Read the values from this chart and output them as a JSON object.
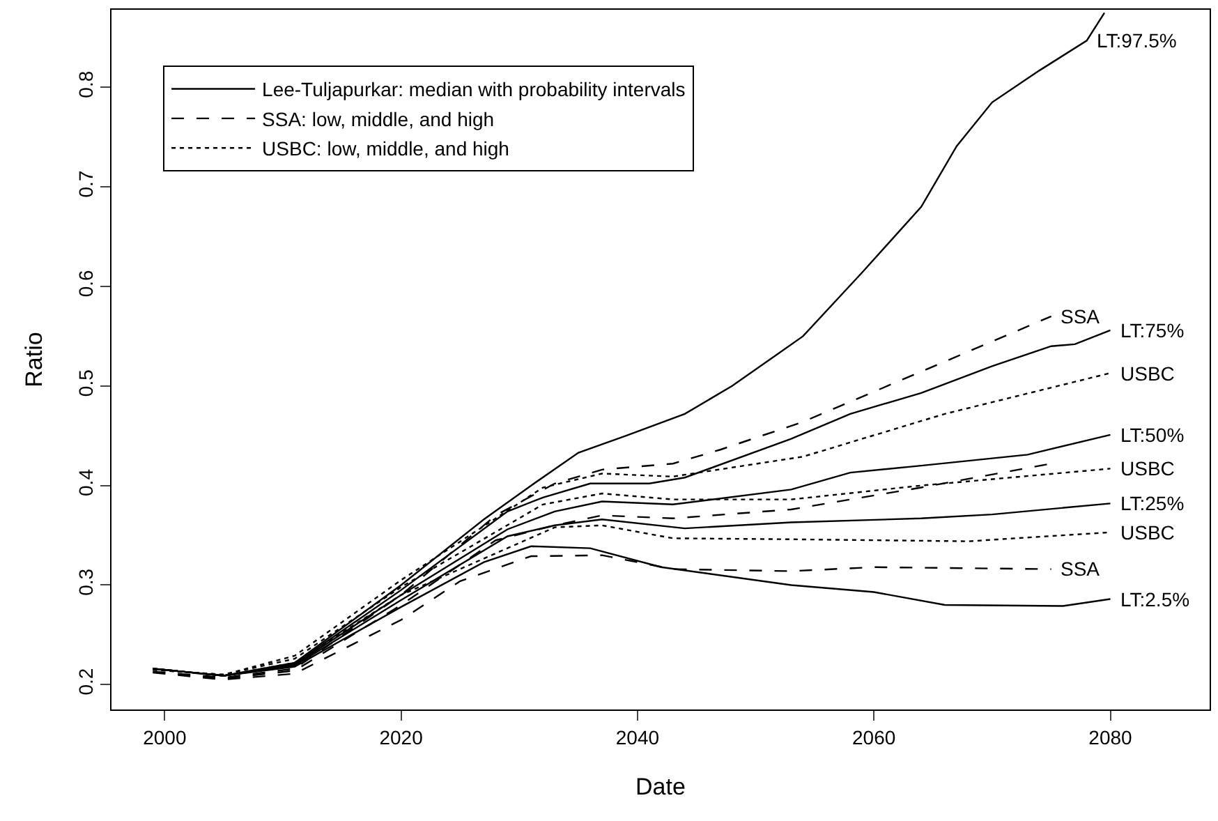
{
  "chart_data": {
    "type": "line",
    "xlabel": "Date",
    "ylabel": "Ratio",
    "xlim": [
      1995.5,
      2088.4
    ],
    "ylim": [
      0.175,
      0.878
    ],
    "xticks": [
      2000,
      2020,
      2040,
      2060,
      2080
    ],
    "yticks": [
      0.2,
      0.3,
      0.4,
      0.5,
      0.6,
      0.7,
      0.8
    ],
    "grid": false,
    "legend": "top left",
    "marker": "none",
    "series": [
      {
        "name": "Lee-Tuljapurkar: median with probability intervals",
        "color": "#000000",
        "line_style": "solid",
        "x": [
          1999,
          2005,
          2011,
          2020,
          2029,
          2033,
          2037,
          2043,
          2053,
          2058,
          2064,
          2073,
          2080
        ],
        "values": [
          0.216,
          0.209,
          0.22,
          0.29,
          0.356,
          0.374,
          0.384,
          0.381,
          0.396,
          0.413,
          0.42,
          0.431,
          0.451
        ]
      },
      {
        "name": "SSA: low, middle, and high",
        "color": "#000000",
        "line_style": "dashed",
        "x": [
          1999,
          2005,
          2011,
          2020,
          2028,
          2033,
          2037,
          2043,
          2053,
          2064,
          2075
        ],
        "values": [
          0.213,
          0.206,
          0.214,
          0.28,
          0.345,
          0.36,
          0.37,
          0.367,
          0.376,
          0.398,
          0.422
        ]
      },
      {
        "name": "USBC: low, middle, and high",
        "color": "#000000",
        "line_style": "dotted",
        "x": [
          1999,
          2005,
          2011,
          2020,
          2032,
          2037,
          2043,
          2053,
          2064,
          2080
        ],
        "values": [
          0.215,
          0.21,
          0.226,
          0.298,
          0.381,
          0.392,
          0.386,
          0.386,
          0.4,
          0.417
        ]
      },
      {
        "color": "#000000",
        "line_style": "solid",
        "x": [
          1999,
          2005,
          2011,
          2020,
          2027,
          2031,
          2035,
          2039,
          2044,
          2048,
          2054,
          2059,
          2064,
          2067,
          2070,
          2074,
          2078,
          2079.5
        ],
        "values": [
          0.216,
          0.209,
          0.222,
          0.3,
          0.366,
          0.4,
          0.433,
          0.45,
          0.472,
          0.5,
          0.55,
          0.614,
          0.68,
          0.741,
          0.785,
          0.817,
          0.847,
          0.875
        ]
      },
      {
        "color": "#000000",
        "line_style": "solid",
        "x": [
          1999,
          2005,
          2011,
          2020,
          2029,
          2032,
          2036,
          2041,
          2044,
          2053,
          2058,
          2064,
          2070,
          2075,
          2077,
          2080
        ],
        "values": [
          0.216,
          0.209,
          0.221,
          0.295,
          0.374,
          0.388,
          0.402,
          0.402,
          0.408,
          0.447,
          0.472,
          0.493,
          0.52,
          0.54,
          0.542,
          0.556
        ]
      },
      {
        "color": "#000000",
        "line_style": "solid",
        "x": [
          1999,
          2005,
          2011,
          2020,
          2029,
          2033,
          2037,
          2044,
          2053,
          2064,
          2070,
          2080
        ],
        "values": [
          0.216,
          0.209,
          0.219,
          0.285,
          0.349,
          0.36,
          0.366,
          0.357,
          0.363,
          0.367,
          0.371,
          0.382
        ]
      },
      {
        "color": "#000000",
        "line_style": "solid",
        "x": [
          1999,
          2005,
          2011,
          2020,
          2027,
          2031,
          2036,
          2042,
          2053,
          2060,
          2066,
          2076,
          2080
        ],
        "values": [
          0.216,
          0.209,
          0.218,
          0.278,
          0.323,
          0.339,
          0.337,
          0.318,
          0.3,
          0.293,
          0.28,
          0.279,
          0.286
        ]
      },
      {
        "color": "#000000",
        "line_style": "dashed",
        "x": [
          1999,
          2005,
          2011,
          2020,
          2028,
          2033,
          2037,
          2043,
          2047,
          2054,
          2075
        ],
        "values": [
          0.213,
          0.207,
          0.216,
          0.29,
          0.37,
          0.402,
          0.416,
          0.422,
          0.436,
          0.464,
          0.57
        ]
      },
      {
        "color": "#000000",
        "line_style": "dashed",
        "x": [
          1999,
          2005,
          2011,
          2020,
          2025,
          2031,
          2037,
          2043,
          2053,
          2060,
          2075
        ],
        "values": [
          0.212,
          0.205,
          0.211,
          0.265,
          0.304,
          0.329,
          0.33,
          0.316,
          0.314,
          0.318,
          0.316
        ]
      },
      {
        "color": "#000000",
        "line_style": "dotted",
        "x": [
          1999,
          2005,
          2011,
          2020,
          2032,
          2037,
          2043,
          2054,
          2066,
          2080
        ],
        "values": [
          0.215,
          0.21,
          0.229,
          0.305,
          0.398,
          0.412,
          0.409,
          0.429,
          0.472,
          0.513
        ]
      },
      {
        "color": "#000000",
        "line_style": "dotted",
        "x": [
          1999,
          2005,
          2011,
          2020,
          2033,
          2037,
          2043,
          2053,
          2068,
          2080
        ],
        "values": [
          0.215,
          0.209,
          0.222,
          0.29,
          0.358,
          0.36,
          0.347,
          0.346,
          0.344,
          0.353
        ]
      }
    ],
    "annotations": [
      {
        "text": "LT:97.5%",
        "x": 2078,
        "y": 0.847
      },
      {
        "text": "SSA",
        "x": 2075,
        "y": 0.57
      },
      {
        "text": "LT:75%",
        "x": 2080,
        "y": 0.556
      },
      {
        "text": "USBC",
        "x": 2080,
        "y": 0.513
      },
      {
        "text": "LT:50%",
        "x": 2080,
        "y": 0.451
      },
      {
        "text": "USBC",
        "x": 2080,
        "y": 0.417
      },
      {
        "text": "LT:25%",
        "x": 2080,
        "y": 0.382
      },
      {
        "text": "USBC",
        "x": 2080,
        "y": 0.353
      },
      {
        "text": "SSA",
        "x": 2075,
        "y": 0.316
      },
      {
        "text": "LT:2.5%",
        "x": 2080,
        "y": 0.286
      }
    ]
  }
}
